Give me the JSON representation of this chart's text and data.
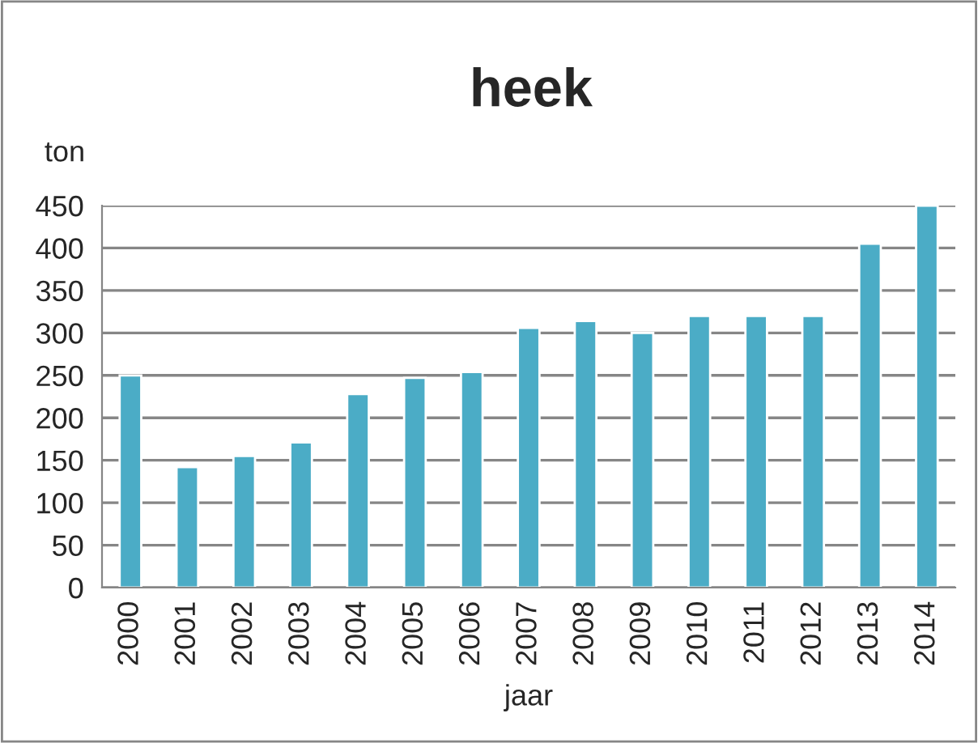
{
  "chart_data": {
    "type": "bar",
    "title": "heek",
    "xlabel": "jaar",
    "ylabel": "ton",
    "categories": [
      "2000",
      "2001",
      "2002",
      "2003",
      "2004",
      "2005",
      "2006",
      "2007",
      "2008",
      "2009",
      "2010",
      "2011",
      "2012",
      "2013",
      "2014"
    ],
    "values": [
      250,
      142,
      155,
      171,
      228,
      247,
      254,
      306,
      314,
      300,
      320,
      320,
      320,
      405,
      450
    ],
    "color": "#4bacc6",
    "ylim": [
      0,
      450
    ],
    "yticks": [
      0,
      50,
      100,
      150,
      200,
      250,
      300,
      350,
      400,
      450
    ],
    "grid": "y"
  }
}
